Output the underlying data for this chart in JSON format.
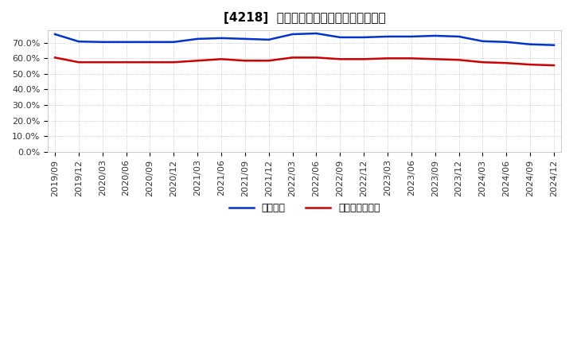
{
  "title": "[4218]  固定比率、固定長期適合率の推移",
  "blue_label": "固定比率",
  "red_label": "固定長期適合率",
  "x_labels": [
    "2019/09",
    "2019/12",
    "2020/03",
    "2020/06",
    "2020/09",
    "2020/12",
    "2021/03",
    "2021/06",
    "2021/09",
    "2021/12",
    "2022/03",
    "2022/06",
    "2022/09",
    "2022/12",
    "2023/03",
    "2023/06",
    "2023/09",
    "2023/12",
    "2024/03",
    "2024/06",
    "2024/09",
    "2024/12"
  ],
  "blue_values": [
    75.5,
    70.8,
    70.5,
    70.5,
    70.5,
    70.5,
    72.5,
    73.0,
    72.5,
    72.0,
    75.5,
    76.0,
    73.5,
    73.5,
    74.0,
    74.0,
    74.5,
    74.0,
    71.0,
    70.5,
    69.0,
    68.5
  ],
  "red_values": [
    60.5,
    57.5,
    57.5,
    57.5,
    57.5,
    57.5,
    58.5,
    59.5,
    58.5,
    58.5,
    60.5,
    60.5,
    59.5,
    59.5,
    60.0,
    60.0,
    59.5,
    59.0,
    57.5,
    57.0,
    56.0,
    55.5
  ],
  "ylim": [
    0,
    78
  ],
  "yticks": [
    0,
    10,
    20,
    30,
    40,
    50,
    60,
    70
  ],
  "ytick_labels": [
    "0.0%",
    "10.0%",
    "20.0%",
    "30.0%",
    "40.0%",
    "50.0%",
    "60.0%",
    "70.0%"
  ],
  "blue_color": "#0033cc",
  "red_color": "#cc0000",
  "bg_color": "#ffffff",
  "grid_color": "#aaaaaa",
  "title_fontsize": 11,
  "legend_fontsize": 9,
  "tick_fontsize": 8
}
